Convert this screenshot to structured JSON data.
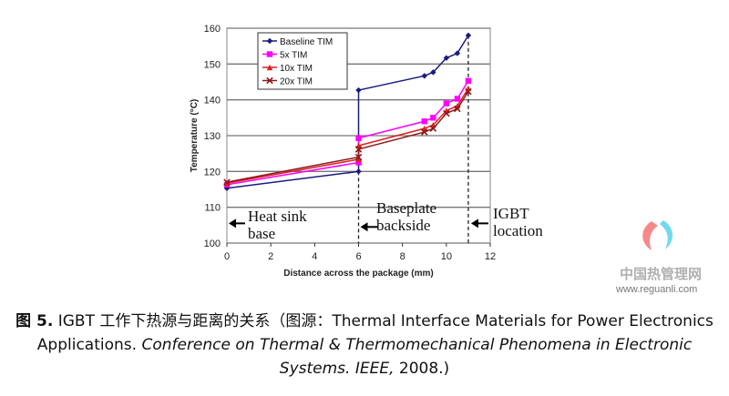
{
  "chart_data": {
    "type": "line",
    "xlabel": "Distance across the package (mm)",
    "ylabel": "Temperature (°C)",
    "xlim": [
      0,
      12
    ],
    "ylim": [
      100,
      160
    ],
    "xticks": [
      0,
      2,
      4,
      6,
      8,
      10,
      12
    ],
    "yticks": [
      100,
      110,
      120,
      130,
      140,
      150,
      160
    ],
    "grid": "horizontal",
    "legend": "top-left",
    "series": [
      {
        "name": "Baseline TIM",
        "color": "#1a1a80",
        "marker": "diamond",
        "x": [
          0,
          6,
          6,
          9,
          9.4,
          10,
          10.5,
          11
        ],
        "y": [
          115.3,
          120,
          142.7,
          146.7,
          147.7,
          151.7,
          153,
          158
        ]
      },
      {
        "name": "5x TIM",
        "color": "#ff00ff",
        "marker": "square",
        "x": [
          0,
          6,
          6,
          9,
          9.4,
          10,
          10.5,
          11
        ],
        "y": [
          116.3,
          122.5,
          129.3,
          134,
          135,
          139,
          140.3,
          145.3
        ]
      },
      {
        "name": "10x TIM",
        "color": "#e02020",
        "marker": "triangle",
        "x": [
          0,
          6,
          6,
          9,
          9.4,
          10,
          10.5,
          11
        ],
        "y": [
          116.7,
          123.4,
          127.2,
          132,
          133,
          137,
          138.3,
          143.2
        ]
      },
      {
        "name": "20x TIM",
        "color": "#8b1a1a",
        "marker": "star",
        "x": [
          0,
          6,
          6,
          9,
          9.4,
          10,
          10.5,
          11
        ],
        "y": [
          117,
          124,
          126.2,
          131,
          132,
          136.2,
          137.5,
          142.3
        ]
      }
    ],
    "annotations": [
      {
        "text": [
          "Heat sink",
          "base"
        ],
        "x": 0
      },
      {
        "text": [
          "Baseplate",
          "backside"
        ],
        "x": 6
      },
      {
        "text": [
          "IGBT",
          "location"
        ],
        "x": 11
      }
    ]
  },
  "caption": {
    "label": "图 5.",
    "text1": " IGBT 工作下热源与距离的关系（图源：Thermal Interface Materials for Power Electronics Applications. ",
    "italic": "Conference on Thermal & Thermomechanical Phenomena in Electronic Systems. IEEE,",
    "text2": " 2008.)"
  },
  "watermark": {
    "name": "中国热管理网",
    "url": "www.reguanli.com"
  }
}
